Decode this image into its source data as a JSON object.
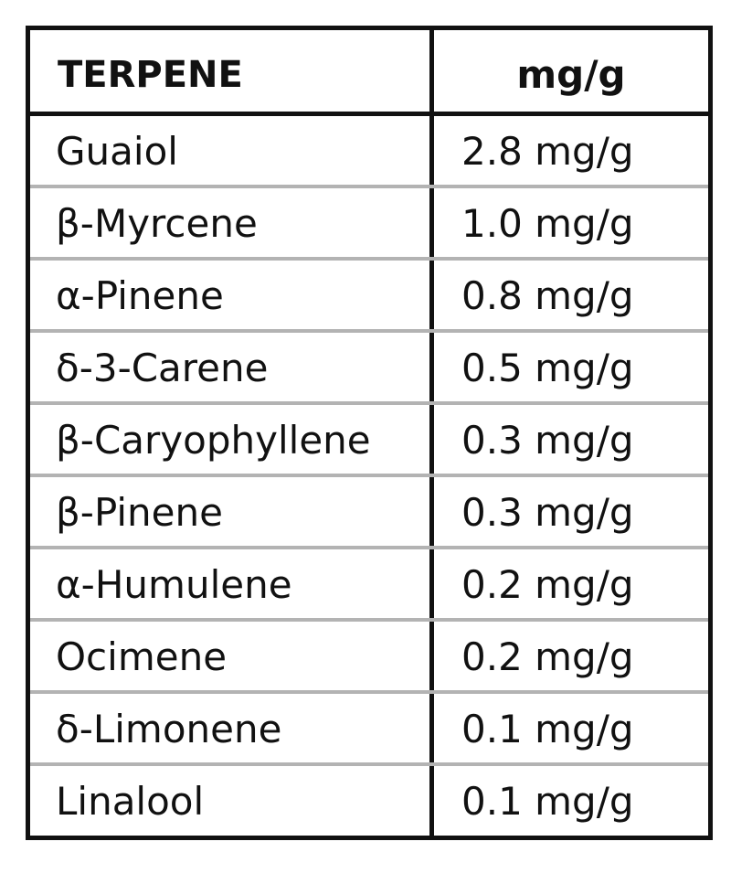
{
  "table": {
    "headers": {
      "terpene": "TERPENE",
      "unit": "mg/g"
    },
    "rows": [
      {
        "name": "Guaiol",
        "value": "2.8 mg/g"
      },
      {
        "name": "β-Myrcene",
        "value": "1.0 mg/g"
      },
      {
        "name": "α-Pinene",
        "value": "0.8 mg/g"
      },
      {
        "name": "δ-3-Carene",
        "value": "0.5 mg/g"
      },
      {
        "name": "β-Caryophyllene",
        "value": "0.3 mg/g"
      },
      {
        "name": "β-Pinene",
        "value": "0.3 mg/g"
      },
      {
        "name": "α-Humulene",
        "value": "0.2 mg/g"
      },
      {
        "name": "Ocimene",
        "value": "0.2 mg/g"
      },
      {
        "name": "δ-Limonene",
        "value": "0.1 mg/g"
      },
      {
        "name": "Linalool",
        "value": "0.1 mg/g"
      }
    ]
  },
  "colors": {
    "border": "#111111",
    "row_divider": "#b3b3b3",
    "background": "#ffffff"
  }
}
